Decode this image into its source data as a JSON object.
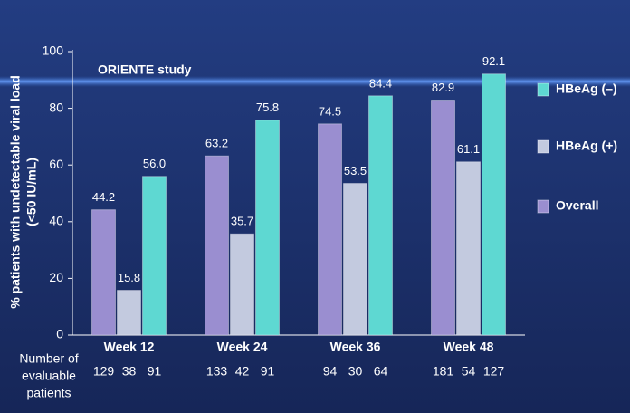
{
  "chart_data": {
    "type": "bar",
    "y_label_lines": [
      "% patients with undetectable viral load",
      "(<50 IU/mL)"
    ],
    "annotation": "ORIENTE study",
    "categories": [
      "Week 12",
      "Week 24",
      "Week 36",
      "Week 48"
    ],
    "series": [
      {
        "name": "Overall",
        "color": "#9a8ed0",
        "values": [
          44.2,
          63.2,
          74.5,
          82.9
        ],
        "value_labels": [
          "44.2",
          "63.2",
          "74.5",
          "82.9"
        ],
        "n": [
          129,
          133,
          94,
          181
        ]
      },
      {
        "name": "HBeAg (+)",
        "color": "#c3cadf",
        "values": [
          15.8,
          35.7,
          53.5,
          61.1
        ],
        "value_labels": [
          "15.8",
          "35.7",
          "53.5",
          "61.1"
        ],
        "n": [
          38,
          42,
          30,
          54
        ]
      },
      {
        "name": "HBeAg (–)",
        "color": "#5ed8d2",
        "values": [
          56.0,
          75.8,
          84.4,
          92.1
        ],
        "value_labels": [
          "56.0",
          "75.8",
          "84.4",
          "92.1"
        ],
        "n": [
          91,
          91,
          64,
          127
        ]
      }
    ],
    "legend_order": [
      2,
      1,
      0
    ],
    "n_label_lines": [
      "Number of",
      "evaluable",
      "patients"
    ],
    "ylim": [
      0,
      100
    ],
    "yticks": [
      0,
      20,
      40,
      60,
      80,
      100
    ]
  }
}
